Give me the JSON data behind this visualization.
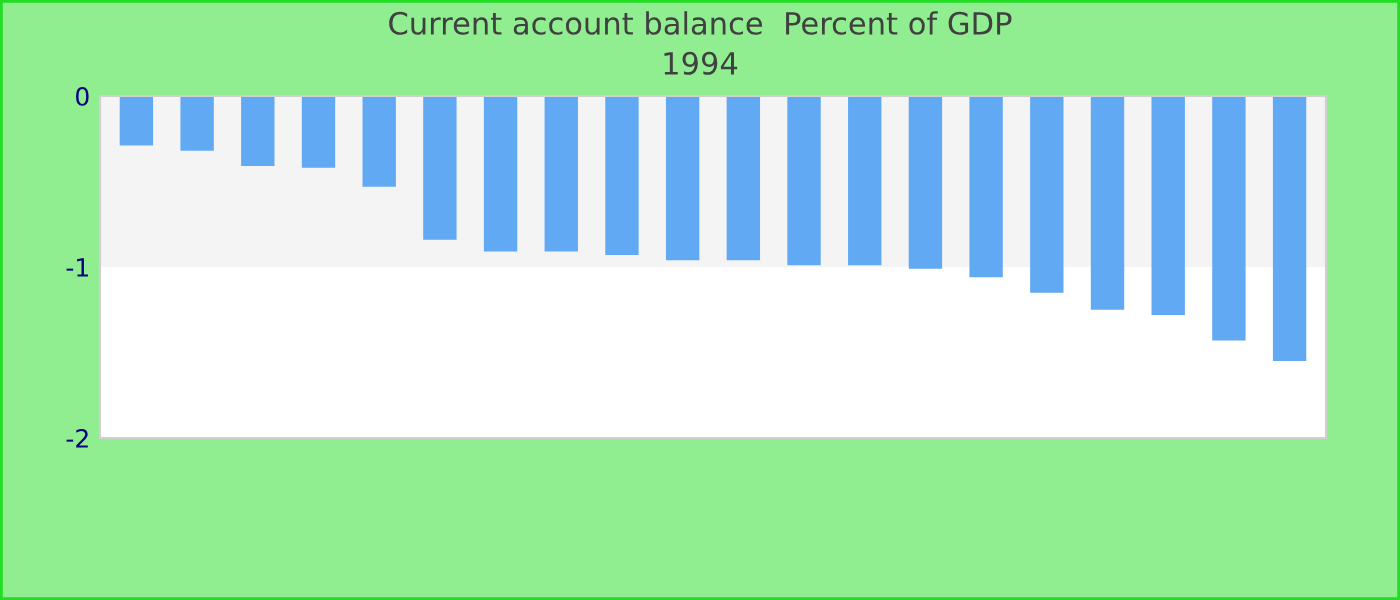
{
  "chart_data": {
    "type": "bar",
    "title": "Current account balance  Percent of GDP",
    "subtitle": "1994",
    "categories": [
      null,
      null,
      null,
      null,
      null,
      null,
      null,
      null,
      null,
      null,
      null,
      null,
      null,
      null,
      null,
      null,
      null,
      null,
      null,
      null
    ],
    "series": [
      {
        "color": "#62a9f4",
        "values": [
          -0.29,
          -0.32,
          -0.41,
          -0.42,
          -0.53,
          -0.84,
          -0.91,
          -0.91,
          -0.93,
          -0.96,
          -0.96,
          -0.99,
          -0.99,
          -1.01,
          -1.06,
          -1.15,
          -1.25,
          -1.28,
          -1.43,
          -1.55
        ]
      }
    ],
    "ylim": [
      -2,
      0
    ],
    "yticks": [
      -2,
      -1,
      0
    ],
    "bands": [
      {
        "axis": "y",
        "from": -1,
        "to": 0,
        "color": "#f4f4f4"
      }
    ],
    "tick_labels": "y",
    "grid": false
  }
}
